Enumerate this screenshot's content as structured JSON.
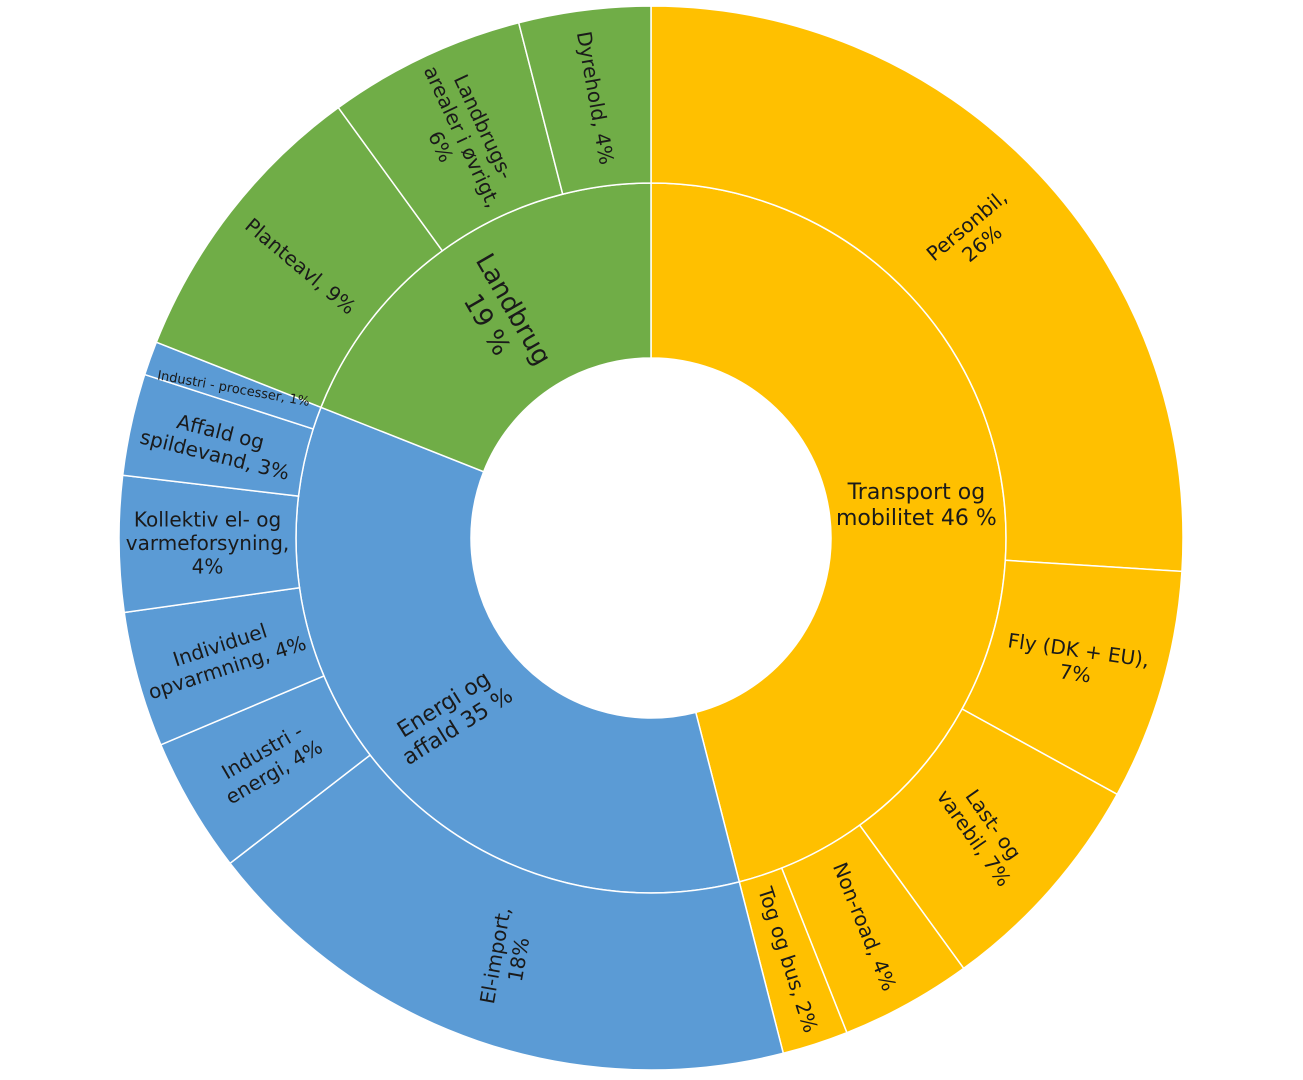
{
  "chart_data": {
    "type": "sunburst",
    "colors": {
      "Transport": "#FFC000",
      "Energi": "#5B9BD5",
      "Landbrug": "#70AD47"
    },
    "groups": [
      {
        "key": "Transport",
        "value": 46,
        "label_lines": [
          "Transport og",
          "mobilitet 46 %"
        ],
        "children": [
          {
            "value": 26,
            "label_lines": [
              "Personbil,",
              "26%"
            ]
          },
          {
            "value": 7,
            "label_lines": [
              "Fly (DK + EU),",
              "7%"
            ]
          },
          {
            "value": 7,
            "label_lines": [
              "Last- og",
              "varebil, 7%"
            ]
          },
          {
            "value": 4,
            "label_lines": [
              "Non-road, 4%"
            ]
          },
          {
            "value": 2,
            "label_lines": [
              "Tog og bus, 2%"
            ]
          }
        ]
      },
      {
        "key": "Energi",
        "value": 35,
        "label_lines": [
          "Energi og",
          "affald 35 %"
        ],
        "children": [
          {
            "value": 18,
            "label_lines": [
              "El-import,",
              "18%"
            ]
          },
          {
            "value": 4,
            "label_lines": [
              "Industri -",
              "energi, 4%"
            ]
          },
          {
            "value": 4,
            "label_lines": [
              "Individuel",
              "opvarmning, 4%"
            ]
          },
          {
            "value": 4,
            "label_lines": [
              "Kollektiv el- og",
              "varmeforsyning,",
              "4%"
            ]
          },
          {
            "value": 3,
            "label_lines": [
              "Affald og",
              "spildevand, 3%"
            ]
          },
          {
            "value": 1,
            "label_lines": [
              "Industri - processer, 1%"
            ]
          }
        ]
      },
      {
        "key": "Landbrug",
        "value": 19,
        "label_lines": [
          "Landbrug",
          "19 %"
        ],
        "children": [
          {
            "value": 9,
            "label_lines": [
              "Planteavl, 9%"
            ]
          },
          {
            "value": 6,
            "label_lines": [
              "Landbrugs-",
              "arealer i øvrigt,",
              "6%"
            ]
          },
          {
            "value": 4,
            "label_lines": [
              "Dyrehold, 4%"
            ]
          }
        ]
      }
    ]
  }
}
